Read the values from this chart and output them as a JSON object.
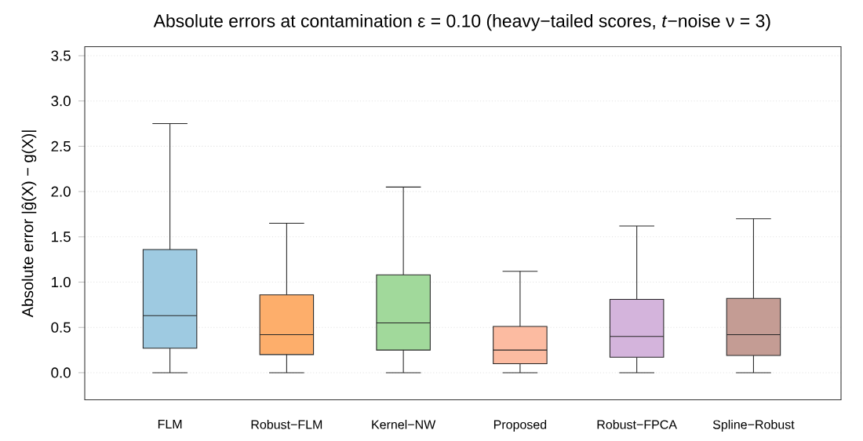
{
  "chart_data": {
    "type": "box",
    "title": "Absolute errors at contamination ε = 0.10 (heavy−tailed scores, *t*−noise ν = 3)",
    "ylabel": "Absolute error |ĝ(X) − g(X)|",
    "categories": [
      "FLM",
      "Robust−FLM",
      "Kernel−NW",
      "Proposed",
      "Robust−FPCA",
      "Spline−Robust"
    ],
    "colors": [
      "#9ecae1",
      "#fdae6b",
      "#a1d99b",
      "#fcbba1",
      "#d4b4dc",
      "#c49c94"
    ],
    "boxes": [
      {
        "low": 0,
        "q1": 0.27,
        "median": 0.63,
        "q3": 1.36,
        "high": 2.75
      },
      {
        "low": 0,
        "q1": 0.2,
        "median": 0.42,
        "q3": 0.86,
        "high": 1.65
      },
      {
        "low": 0,
        "q1": 0.25,
        "median": 0.55,
        "q3": 1.08,
        "high": 2.05
      },
      {
        "low": 0,
        "q1": 0.1,
        "median": 0.25,
        "q3": 0.51,
        "high": 1.12
      },
      {
        "low": 0,
        "q1": 0.17,
        "median": 0.4,
        "q3": 0.81,
        "high": 1.62
      },
      {
        "low": 0,
        "q1": 0.19,
        "median": 0.42,
        "q3": 0.82,
        "high": 1.7
      }
    ],
    "ylim": [
      -0.3,
      3.6
    ],
    "yticks": [
      {
        "value": 0,
        "label": "0.0"
      },
      0.5,
      {
        "value": 1,
        "label": "1.0"
      },
      1.5,
      {
        "value": 2,
        "label": "2.0"
      },
      2.5,
      {
        "value": 3,
        "label": "3.0"
      },
      3.5
    ],
    "grid": "y"
  }
}
